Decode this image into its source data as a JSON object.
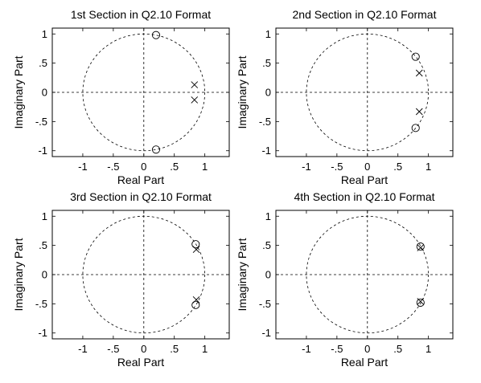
{
  "chart_data": [
    {
      "type": "scatter",
      "title": "1st Section in Q2.10 Format",
      "xlabel": "Real Part",
      "ylabel": "Imaginary Part",
      "xlim": [
        -1.5,
        1.4
      ],
      "ylim": [
        -1.1,
        1.1
      ],
      "xticks": [
        -1,
        -0.5,
        0,
        0.5,
        1
      ],
      "yticks": [
        -1,
        -0.5,
        0,
        0.5,
        1
      ],
      "unit_circle": true,
      "zeros": [
        {
          "x": 0.2,
          "y": 0.98
        },
        {
          "x": 0.2,
          "y": -0.98
        }
      ],
      "poles": [
        {
          "x": 0.83,
          "y": 0.13
        },
        {
          "x": 0.83,
          "y": -0.13
        }
      ]
    },
    {
      "type": "scatter",
      "title": "2nd Section in Q2.10 Format",
      "xlabel": "Real Part",
      "ylabel": "Imaginary Part",
      "xlim": [
        -1.5,
        1.4
      ],
      "ylim": [
        -1.1,
        1.1
      ],
      "xticks": [
        -1,
        -0.5,
        0,
        0.5,
        1
      ],
      "yticks": [
        -1,
        -0.5,
        0,
        0.5,
        1
      ],
      "unit_circle": true,
      "zeros": [
        {
          "x": 0.79,
          "y": 0.61
        },
        {
          "x": 0.79,
          "y": -0.61
        }
      ],
      "poles": [
        {
          "x": 0.85,
          "y": 0.33
        },
        {
          "x": 0.85,
          "y": -0.33
        }
      ]
    },
    {
      "type": "scatter",
      "title": "3rd Section in Q2.10 Format",
      "xlabel": "Real Part",
      "ylabel": "Imaginary Part",
      "xlim": [
        -1.5,
        1.4
      ],
      "ylim": [
        -1.1,
        1.1
      ],
      "xticks": [
        -1,
        -0.5,
        0,
        0.5,
        1
      ],
      "yticks": [
        -1,
        -0.5,
        0,
        0.5,
        1
      ],
      "unit_circle": true,
      "zeros": [
        {
          "x": 0.85,
          "y": 0.52
        },
        {
          "x": 0.85,
          "y": -0.52
        }
      ],
      "poles": [
        {
          "x": 0.86,
          "y": 0.43
        },
        {
          "x": 0.86,
          "y": -0.43
        }
      ]
    },
    {
      "type": "scatter",
      "title": "4th Section in Q2.10 Format",
      "xlabel": "Real Part",
      "ylabel": "Imaginary Part",
      "xlim": [
        -1.5,
        1.4
      ],
      "ylim": [
        -1.1,
        1.1
      ],
      "xticks": [
        -1,
        -0.5,
        0,
        0.5,
        1
      ],
      "yticks": [
        -1,
        -0.5,
        0,
        0.5,
        1
      ],
      "unit_circle": true,
      "zeros": [
        {
          "x": 0.87,
          "y": 0.48
        },
        {
          "x": 0.87,
          "y": -0.48
        }
      ],
      "poles": [
        {
          "x": 0.87,
          "y": 0.46
        },
        {
          "x": 0.87,
          "y": -0.46
        }
      ]
    }
  ]
}
